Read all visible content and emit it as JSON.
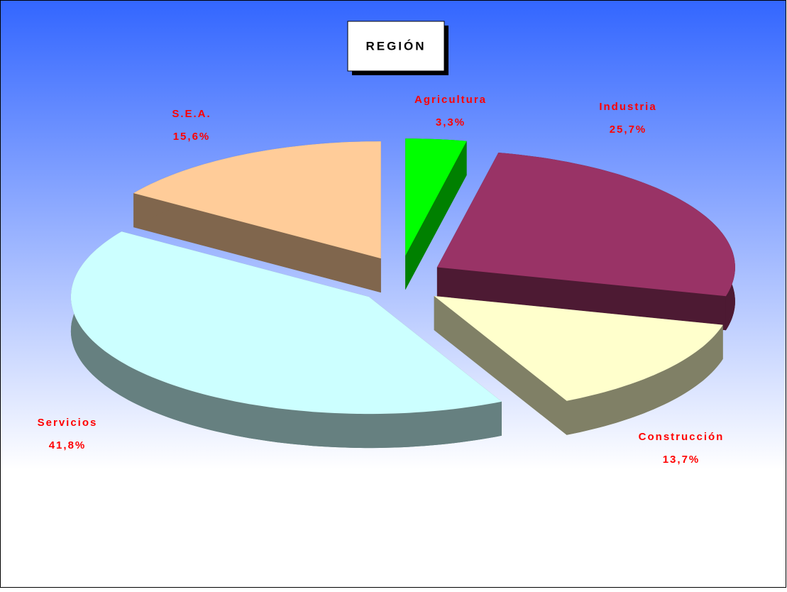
{
  "chart_data": {
    "type": "pie",
    "title": "REGIÓN",
    "categories": [
      "Agricultura",
      "Industria",
      "Construcción",
      "Servicios",
      "S.E.A."
    ],
    "values": [
      3.3,
      25.7,
      13.7,
      41.8,
      15.6
    ],
    "value_labels": [
      "3,3%",
      "25,7%",
      "13,7%",
      "41,8%",
      "15,6%"
    ],
    "colors": [
      "#00ff00",
      "#993366",
      "#ffffcc",
      "#ccffff",
      "#ffcc99"
    ]
  }
}
